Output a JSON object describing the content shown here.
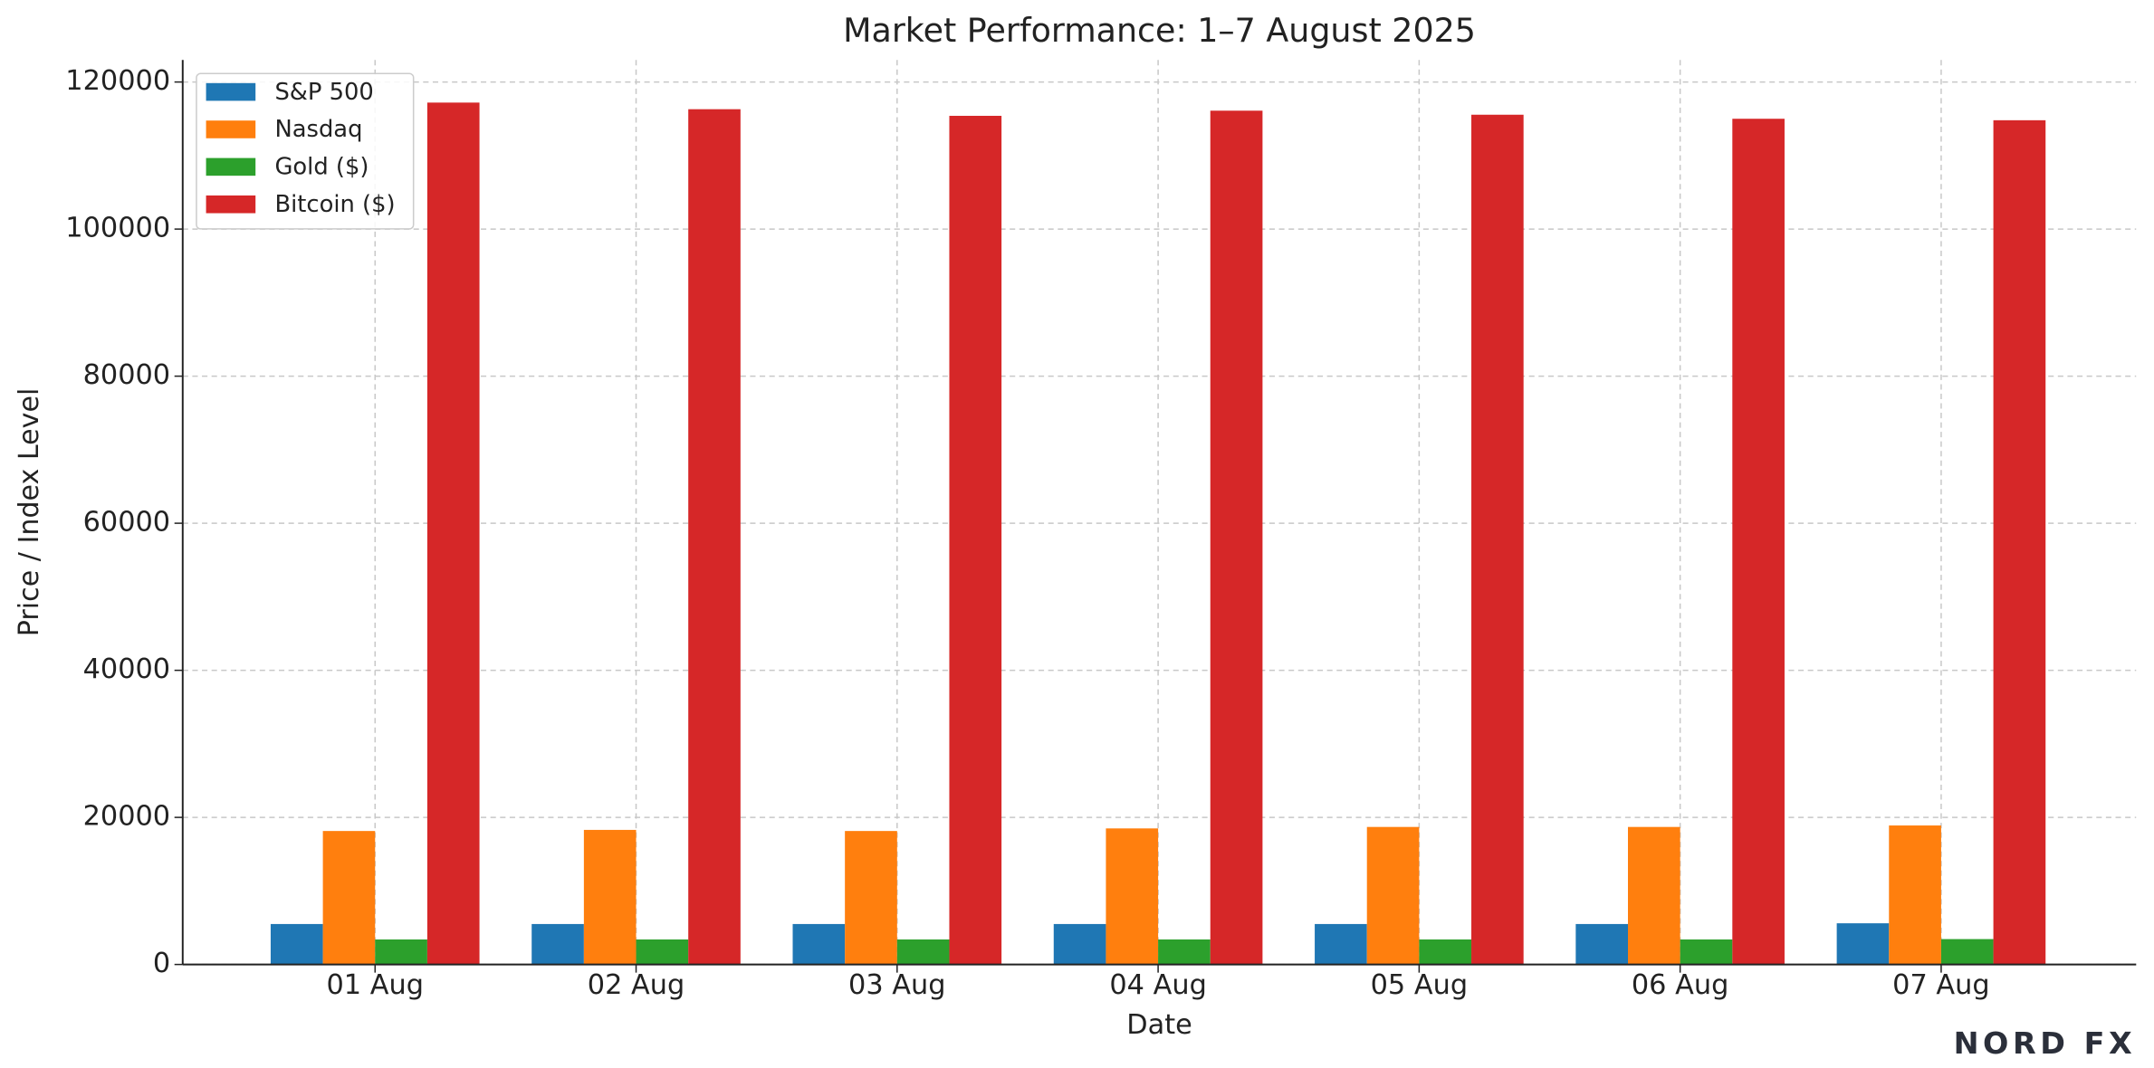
{
  "chart_data": {
    "type": "bar",
    "title": "Market Performance: 1–7 August 2025",
    "xlabel": "Date",
    "ylabel": "Price / Index Level",
    "categories": [
      "01 Aug",
      "02 Aug",
      "03 Aug",
      "04 Aug",
      "05 Aug",
      "06 Aug",
      "07 Aug"
    ],
    "series": [
      {
        "name": "S&P 500",
        "color": "#1f77b4",
        "values": [
          5500,
          5500,
          5500,
          5500,
          5500,
          5500,
          5600
        ]
      },
      {
        "name": "Nasdaq",
        "color": "#ff7f0e",
        "values": [
          18150,
          18300,
          18150,
          18500,
          18700,
          18700,
          18900
        ]
      },
      {
        "name": "Gold ($)",
        "color": "#2ca02c",
        "values": [
          3400,
          3400,
          3400,
          3400,
          3400,
          3400,
          3450
        ]
      },
      {
        "name": "Bitcoin ($)",
        "color": "#d62728",
        "values": [
          117200,
          116300,
          115400,
          116100,
          115550,
          115000,
          114800
        ]
      }
    ],
    "ylim": [
      0,
      123000
    ],
    "yticks": [
      0,
      20000,
      40000,
      60000,
      80000,
      100000,
      120000
    ],
    "grid": true,
    "legend": "upper left",
    "logo": "NORD FX"
  }
}
